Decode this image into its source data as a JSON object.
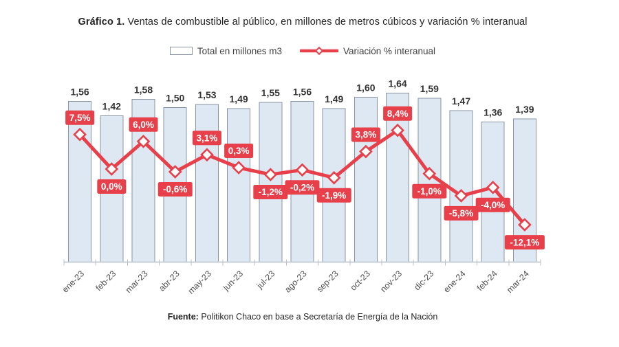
{
  "title": {
    "prefix": "Gráfico 1.",
    "rest": " Ventas de combustible al público, en millones de metros cúbicos y variación % interanual"
  },
  "legend": {
    "bars_label": "Total en millones m3",
    "line_label": "Variación % interanual"
  },
  "source": {
    "prefix": "Fuente:",
    "rest": " Politikon Chaco en base a Secretaría de Energía de la Nación"
  },
  "colors": {
    "bar_fill": "#dde8f3",
    "bar_border": "#8a94a0",
    "line": "#e8404a",
    "label_bg": "#e8404a",
    "label_text": "#ffffff",
    "marker_fill": "#ffffff",
    "axis": "#c9d0d8",
    "tick": "#b9c1cb",
    "value_text": "#333333",
    "month_text": "#4f4f4f"
  },
  "chart_data": {
    "type": "bar+line combo",
    "title": "Gráfico 1. Ventas de combustible al público, en millones de metros cúbicos y variación % interanual",
    "categories": [
      "ene-23",
      "feb-23",
      "mar-23",
      "abr-23",
      "may-23",
      "jun-23",
      "jul-23",
      "ago-23",
      "sep-23",
      "oct-23",
      "nov-23",
      "dic-23",
      "ene-24",
      "feb-24",
      "mar-24"
    ],
    "series": [
      {
        "name": "Total en millones m3",
        "type": "bar",
        "values": [
          1.56,
          1.42,
          1.58,
          1.5,
          1.53,
          1.49,
          1.55,
          1.56,
          1.49,
          1.6,
          1.64,
          1.59,
          1.47,
          1.36,
          1.39
        ],
        "labels": [
          "1,56",
          "1,42",
          "1,58",
          "1,50",
          "1,53",
          "1,49",
          "1,55",
          "1,56",
          "1,49",
          "1,60",
          "1,64",
          "1,59",
          "1,47",
          "1,36",
          "1,39"
        ]
      },
      {
        "name": "Variación % interanual",
        "type": "line",
        "values": [
          7.5,
          0.0,
          6.0,
          -0.6,
          3.1,
          0.3,
          -1.2,
          -0.2,
          -1.9,
          3.8,
          8.4,
          -1.0,
          -5.8,
          -4.0,
          -12.1
        ],
        "labels": [
          "7,5%",
          "0,0%",
          "6,0%",
          "-0,6%",
          "3,1%",
          "0,3%",
          "-1,2%",
          "-0,2%",
          "-1,9%",
          "3,8%",
          "8,4%",
          "-1,0%",
          "-5,8%",
          "-4,0%",
          "-12,1%"
        ]
      }
    ],
    "axes": {
      "bar_ylim": [
        0,
        1.9
      ],
      "line_ylim_pct": [
        -14,
        10
      ],
      "grid": false,
      "y_axis_visible": false,
      "legend_position": "top",
      "data_labels": "on"
    }
  }
}
